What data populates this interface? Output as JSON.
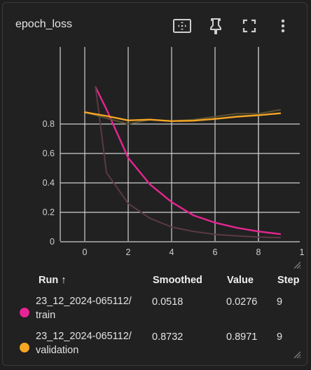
{
  "card": {
    "title": "epoch_loss"
  },
  "toolbar": {
    "icons": [
      "fit-domain-icon",
      "pin-icon",
      "fullscreen-icon",
      "more-vert-icon"
    ]
  },
  "chart_data": {
    "type": "line",
    "title": "",
    "xlabel": "",
    "ylabel": "",
    "xlim": [
      -1,
      10
    ],
    "ylim": [
      0,
      1.0
    ],
    "x_ticks": [
      "0",
      "2",
      "4",
      "6",
      "8",
      "1"
    ],
    "y_ticks": [
      "0",
      "0.2",
      "0.4",
      "0.6",
      "0.8"
    ],
    "grid": true,
    "series": [
      {
        "name": "23_12_2024-065112/train",
        "color": "#e52592",
        "smoothed": true,
        "x": [
          0.5,
          1,
          2,
          3,
          4,
          5,
          6,
          7,
          8,
          9
        ],
        "values": [
          1.05,
          0.9,
          0.57,
          0.39,
          0.27,
          0.18,
          0.13,
          0.095,
          0.07,
          0.052
        ]
      },
      {
        "name": "23_12_2024-065112/train (raw)",
        "color": "#5a3a44",
        "smoothed": false,
        "x": [
          0.5,
          1,
          2,
          3,
          4,
          5,
          6,
          7,
          8,
          9
        ],
        "values": [
          1.05,
          0.47,
          0.26,
          0.16,
          0.1,
          0.07,
          0.05,
          0.04,
          0.032,
          0.028
        ]
      },
      {
        "name": "23_12_2024-065112/validation (raw)",
        "color": "#5a5032",
        "smoothed": false,
        "x": [
          0,
          1,
          2,
          3,
          4,
          5,
          6,
          7,
          8,
          9
        ],
        "values": [
          0.88,
          0.84,
          0.8,
          0.83,
          0.82,
          0.83,
          0.85,
          0.87,
          0.87,
          0.897
        ]
      },
      {
        "name": "23_12_2024-065112/validation",
        "color": "#f5a623",
        "smoothed": true,
        "x": [
          0,
          1,
          2,
          3,
          4,
          5,
          6,
          7,
          8,
          9
        ],
        "values": [
          0.88,
          0.855,
          0.825,
          0.83,
          0.82,
          0.823,
          0.835,
          0.85,
          0.86,
          0.873
        ]
      }
    ]
  },
  "table": {
    "headers": {
      "run": "Run ↑",
      "smoothed": "Smoothed",
      "value": "Value",
      "step": "Step"
    },
    "rows": [
      {
        "color": "#e52592",
        "run_line1": "23_12_2024-065112/",
        "run_line2": "train",
        "smoothed": "0.0518",
        "value": "0.0276",
        "step": "9"
      },
      {
        "color": "#f5a623",
        "run_line1": "23_12_2024-065112/",
        "run_line2": "validation",
        "smoothed": "0.8732",
        "value": "0.8971",
        "step": "9"
      }
    ]
  }
}
